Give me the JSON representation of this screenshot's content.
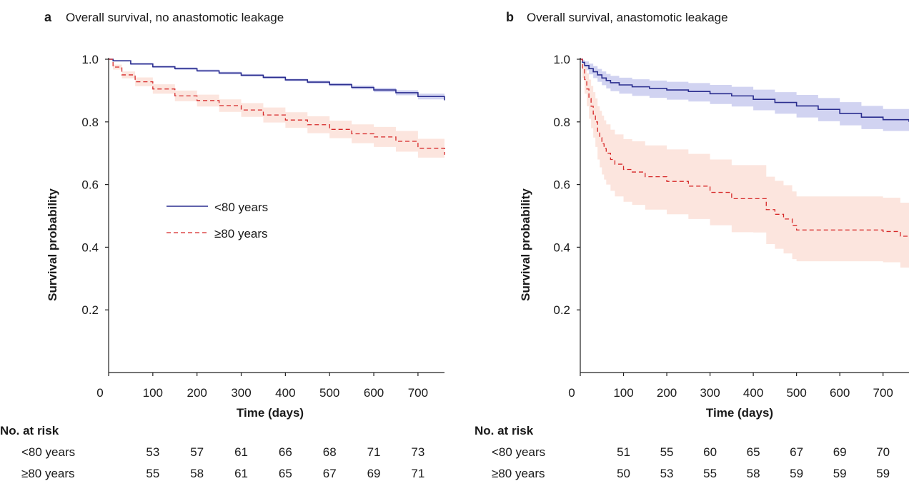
{
  "chart_data": [
    {
      "type": "line",
      "panel_letter": "a",
      "title": "Overall survival, no anastomotic leakage",
      "xlabel": "Time (days)",
      "ylabel": "Survival probability",
      "xlim": [
        0,
        760
      ],
      "ylim": [
        0,
        1.0
      ],
      "x_ticks": [
        "0",
        "100",
        "200",
        "300",
        "400",
        "500",
        "600",
        "700"
      ],
      "y_ticks": [
        "0.2",
        "0.4",
        "0.6",
        "0.8",
        "1.0"
      ],
      "legend": {
        "placement": "center-left",
        "entries": [
          "<80 years",
          "≥80 years"
        ]
      },
      "series": [
        {
          "name": "<80 years",
          "color": "#2b2e8f",
          "band_color": "#c9cbee",
          "style": "solid",
          "x": [
            0,
            10,
            50,
            100,
            150,
            200,
            250,
            300,
            350,
            400,
            450,
            500,
            550,
            600,
            650,
            700,
            760
          ],
          "y": [
            1.0,
            0.995,
            0.985,
            0.976,
            0.97,
            0.963,
            0.956,
            0.949,
            0.942,
            0.934,
            0.927,
            0.919,
            0.91,
            0.902,
            0.893,
            0.881,
            0.869
          ],
          "lower": [
            1.0,
            0.993,
            0.982,
            0.973,
            0.966,
            0.959,
            0.952,
            0.945,
            0.938,
            0.93,
            0.922,
            0.914,
            0.904,
            0.895,
            0.885,
            0.872,
            0.86
          ],
          "upper": [
            1.0,
            0.997,
            0.988,
            0.979,
            0.974,
            0.967,
            0.96,
            0.953,
            0.946,
            0.938,
            0.932,
            0.924,
            0.916,
            0.909,
            0.901,
            0.89,
            0.878
          ]
        },
        {
          "name": "≥80 years",
          "color": "#d62828",
          "band_color": "#fbe0d8",
          "style": "dashed",
          "x": [
            0,
            10,
            30,
            60,
            100,
            150,
            200,
            250,
            300,
            350,
            400,
            450,
            500,
            550,
            600,
            650,
            700,
            760
          ],
          "y": [
            1.0,
            0.975,
            0.95,
            0.928,
            0.905,
            0.883,
            0.868,
            0.852,
            0.838,
            0.822,
            0.806,
            0.791,
            0.776,
            0.762,
            0.752,
            0.738,
            0.716,
            0.695
          ],
          "lower": [
            1.0,
            0.967,
            0.939,
            0.914,
            0.89,
            0.866,
            0.849,
            0.832,
            0.816,
            0.798,
            0.781,
            0.764,
            0.748,
            0.732,
            0.72,
            0.705,
            0.686,
            0.668
          ],
          "upper": [
            1.0,
            0.983,
            0.961,
            0.942,
            0.92,
            0.9,
            0.887,
            0.872,
            0.86,
            0.846,
            0.831,
            0.818,
            0.804,
            0.792,
            0.784,
            0.771,
            0.746,
            0.722
          ]
        }
      ],
      "risk_table": {
        "header": "No. at risk",
        "rows": [
          {
            "label": "<80 years",
            "values": [
              "53",
              "57",
              "61",
              "66",
              "68",
              "71",
              "73"
            ]
          },
          {
            "label": "≥80 years",
            "values": [
              "55",
              "58",
              "61",
              "65",
              "67",
              "69",
              "71"
            ]
          }
        ]
      }
    },
    {
      "type": "line",
      "panel_letter": "b",
      "title": "Overall survival, anastomotic leakage",
      "xlabel": "Time (days)",
      "ylabel": "Survival probability",
      "xlim": [
        0,
        760
      ],
      "ylim": [
        0,
        1.0
      ],
      "x_ticks": [
        "0",
        "100",
        "200",
        "300",
        "400",
        "500",
        "600",
        "700"
      ],
      "y_ticks": [
        "0.2",
        "0.4",
        "0.6",
        "0.8",
        "1.0"
      ],
      "series": [
        {
          "name": "<80 years",
          "color": "#2b2e8f",
          "band_color": "#c9cbee",
          "style": "solid",
          "x": [
            0,
            5,
            10,
            20,
            30,
            40,
            50,
            60,
            70,
            90,
            120,
            160,
            200,
            250,
            300,
            350,
            400,
            450,
            500,
            550,
            600,
            650,
            700,
            760
          ],
          "y": [
            1.0,
            0.99,
            0.98,
            0.97,
            0.96,
            0.95,
            0.94,
            0.932,
            0.925,
            0.918,
            0.912,
            0.907,
            0.902,
            0.897,
            0.89,
            0.883,
            0.872,
            0.862,
            0.851,
            0.84,
            0.827,
            0.815,
            0.807,
            0.8
          ],
          "lower": [
            1.0,
            0.98,
            0.965,
            0.952,
            0.94,
            0.928,
            0.917,
            0.907,
            0.898,
            0.89,
            0.883,
            0.877,
            0.871,
            0.865,
            0.857,
            0.849,
            0.837,
            0.826,
            0.814,
            0.802,
            0.789,
            0.777,
            0.771,
            0.772
          ],
          "upper": [
            1.0,
            0.998,
            0.993,
            0.986,
            0.978,
            0.969,
            0.961,
            0.953,
            0.947,
            0.941,
            0.936,
            0.932,
            0.928,
            0.924,
            0.918,
            0.912,
            0.903,
            0.895,
            0.886,
            0.876,
            0.863,
            0.851,
            0.841,
            0.833
          ]
        },
        {
          "name": "≥80 years",
          "color": "#d62828",
          "band_color": "#fbe0d8",
          "style": "dashed",
          "x": [
            0,
            5,
            10,
            15,
            20,
            25,
            30,
            35,
            40,
            45,
            50,
            55,
            60,
            70,
            80,
            100,
            120,
            150,
            200,
            250,
            300,
            350,
            400,
            430,
            450,
            470,
            490,
            500,
            600,
            700,
            740,
            760
          ],
          "y": [
            1.0,
            0.97,
            0.935,
            0.905,
            0.875,
            0.85,
            0.825,
            0.8,
            0.77,
            0.75,
            0.73,
            0.715,
            0.7,
            0.68,
            0.665,
            0.648,
            0.64,
            0.625,
            0.61,
            0.595,
            0.575,
            0.555,
            0.555,
            0.52,
            0.505,
            0.49,
            0.47,
            0.455,
            0.455,
            0.45,
            0.435,
            0.435
          ],
          "lower": [
            1.0,
            0.94,
            0.89,
            0.85,
            0.81,
            0.78,
            0.75,
            0.72,
            0.68,
            0.655,
            0.632,
            0.616,
            0.6,
            0.58,
            0.562,
            0.545,
            0.535,
            0.52,
            0.505,
            0.49,
            0.47,
            0.448,
            0.447,
            0.41,
            0.395,
            0.38,
            0.362,
            0.355,
            0.355,
            0.352,
            0.335,
            0.335
          ],
          "upper": [
            1.0,
            0.99,
            0.975,
            0.955,
            0.935,
            0.915,
            0.895,
            0.875,
            0.85,
            0.835,
            0.82,
            0.805,
            0.792,
            0.775,
            0.76,
            0.745,
            0.738,
            0.725,
            0.712,
            0.698,
            0.68,
            0.662,
            0.662,
            0.625,
            0.612,
            0.598,
            0.578,
            0.562,
            0.562,
            0.558,
            0.542,
            0.542
          ]
        }
      ],
      "risk_table": {
        "header": "No. at risk",
        "rows": [
          {
            "label": "<80 years",
            "values": [
              "51",
              "55",
              "60",
              "65",
              "67",
              "69",
              "70"
            ]
          },
          {
            "label": "≥80 years",
            "values": [
              "50",
              "53",
              "55",
              "58",
              "59",
              "59",
              "59"
            ]
          }
        ]
      }
    }
  ]
}
